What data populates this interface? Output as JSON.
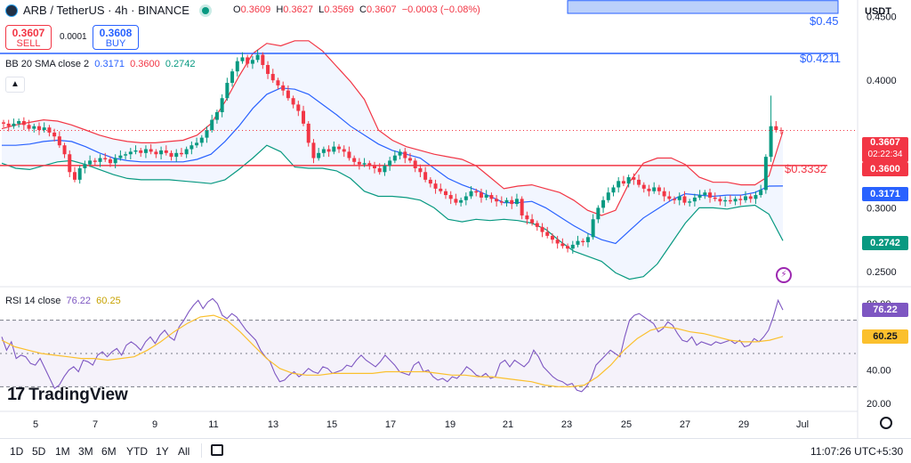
{
  "header": {
    "symbol": "ARB / TetherUS · 4h · BINANCE",
    "ohlc": {
      "o_label": "O",
      "o": "0.3609",
      "h_label": "H",
      "h": "0.3627",
      "l_label": "L",
      "l": "0.3569",
      "c_label": "C",
      "c": "0.3607",
      "change": "−0.0003 (−0.08%)"
    },
    "sell_price": "0.3607",
    "sell_label": "SELL",
    "spread": "0.0001",
    "buy_price": "0.3608",
    "buy_label": "BUY",
    "currency": "USDT"
  },
  "indicators": {
    "bb_label": "BB 20 SMA close 2",
    "bb_basis": "0.3171",
    "bb_upper": "0.3600",
    "bb_lower": "0.2742",
    "rsi_label": "RSI 14 close",
    "rsi_value": "76.22",
    "rsi_ma": "60.25"
  },
  "price_axis": {
    "ticks": [
      "0.4500",
      "0.4000",
      "0.3000",
      "0.2500"
    ]
  },
  "rsi_axis": {
    "ticks": [
      "80.00",
      "40.00",
      "20.00"
    ]
  },
  "time_axis": {
    "ticks": [
      "5",
      "7",
      "9",
      "11",
      "13",
      "15",
      "17",
      "19",
      "21",
      "23",
      "25",
      "27",
      "29",
      "Jul"
    ]
  },
  "tags": {
    "last_price": "0.3607",
    "countdown": "02:22:34",
    "upper": "0.3600",
    "basis": "0.3171",
    "lower": "0.2742",
    "rsi": "76.22",
    "rsi_ma": "60.25"
  },
  "annotations": {
    "level_045": "$0.45",
    "level_04211": "$0.4211",
    "level_03332": "$0.3332"
  },
  "branding": {
    "name": "TradingView"
  },
  "bottom_bar": {
    "timeframes": [
      "1D",
      "5D",
      "1M",
      "3M",
      "6M",
      "YTD",
      "1Y",
      "All"
    ],
    "clock": "11:07:26 UTC+5:30"
  },
  "colors": {
    "up": "#089981",
    "down": "#f23645",
    "basis": "#2962ff",
    "upper_band": "#f23645",
    "lower_band": "#089981",
    "rsi": "#7e57c2",
    "rsi_ma": "#fbc02d"
  },
  "chart_data": {
    "type": "candlestick",
    "title": "ARB / TetherUS · 4h · BINANCE",
    "x_ticks": [
      "5",
      "7",
      "9",
      "11",
      "13",
      "15",
      "17",
      "19",
      "21",
      "23",
      "25",
      "27",
      "29",
      "Jul"
    ],
    "price_range": [
      0.2381,
      0.463
    ],
    "horizontal_levels": [
      0.45,
      0.4211,
      0.3332
    ],
    "resistance_zone": [
      0.4525,
      0.4625
    ],
    "candle_closes": [
      0.366,
      0.364,
      0.366,
      0.368,
      0.365,
      0.362,
      0.364,
      0.361,
      0.363,
      0.359,
      0.356,
      0.349,
      0.342,
      0.328,
      0.322,
      0.331,
      0.334,
      0.337,
      0.336,
      0.339,
      0.338,
      0.335,
      0.339,
      0.341,
      0.342,
      0.344,
      0.345,
      0.343,
      0.346,
      0.344,
      0.342,
      0.345,
      0.343,
      0.34,
      0.343,
      0.342,
      0.346,
      0.349,
      0.351,
      0.355,
      0.361,
      0.369,
      0.375,
      0.386,
      0.398,
      0.407,
      0.415,
      0.418,
      0.413,
      0.416,
      0.42,
      0.412,
      0.405,
      0.4,
      0.396,
      0.392,
      0.386,
      0.381,
      0.376,
      0.366,
      0.351,
      0.339,
      0.343,
      0.346,
      0.344,
      0.348,
      0.346,
      0.344,
      0.339,
      0.336,
      0.334,
      0.335,
      0.333,
      0.331,
      0.328,
      0.333,
      0.337,
      0.341,
      0.344,
      0.339,
      0.337,
      0.331,
      0.328,
      0.322,
      0.319,
      0.315,
      0.313,
      0.31,
      0.307,
      0.304,
      0.306,
      0.309,
      0.313,
      0.312,
      0.308,
      0.31,
      0.307,
      0.305,
      0.304,
      0.306,
      0.303,
      0.307,
      0.294,
      0.291,
      0.288,
      0.285,
      0.281,
      0.278,
      0.275,
      0.272,
      0.27,
      0.268,
      0.271,
      0.274,
      0.273,
      0.277,
      0.291,
      0.3,
      0.306,
      0.312,
      0.316,
      0.321,
      0.319,
      0.324,
      0.322,
      0.318,
      0.315,
      0.313,
      0.316,
      0.313,
      0.309,
      0.307,
      0.306,
      0.309,
      0.304,
      0.305,
      0.308,
      0.31,
      0.312,
      0.308,
      0.307,
      0.305,
      0.306,
      0.305,
      0.307,
      0.306,
      0.309,
      0.307,
      0.31,
      0.314,
      0.34,
      0.364,
      0.361,
      0.3607
    ],
    "series": [
      {
        "name": "Basis",
        "values": [
          0.349,
          0.349,
          0.35,
          0.352,
          0.353,
          0.352,
          0.348,
          0.343,
          0.339,
          0.337,
          0.336,
          0.336,
          0.336,
          0.336,
          0.338,
          0.342,
          0.352,
          0.364,
          0.378,
          0.389,
          0.394,
          0.393,
          0.389,
          0.381,
          0.373,
          0.364,
          0.357,
          0.35,
          0.345,
          0.342,
          0.339,
          0.331,
          0.323,
          0.318,
          0.314,
          0.309,
          0.304,
          0.304,
          0.305,
          0.3,
          0.293,
          0.286,
          0.28,
          0.275,
          0.272,
          0.282,
          0.292,
          0.299,
          0.306,
          0.311,
          0.31,
          0.309,
          0.31,
          0.31,
          0.312,
          0.317,
          0.3171
        ]
      },
      {
        "name": "Upper",
        "values": [
          0.362,
          0.365,
          0.367,
          0.369,
          0.368,
          0.365,
          0.361,
          0.357,
          0.354,
          0.352,
          0.351,
          0.351,
          0.352,
          0.353,
          0.357,
          0.366,
          0.383,
          0.403,
          0.421,
          0.429,
          0.427,
          0.431,
          0.431,
          0.423,
          0.411,
          0.399,
          0.385,
          0.361,
          0.353,
          0.348,
          0.345,
          0.342,
          0.34,
          0.338,
          0.333,
          0.324,
          0.315,
          0.317,
          0.318,
          0.315,
          0.312,
          0.306,
          0.298,
          0.294,
          0.298,
          0.32,
          0.335,
          0.339,
          0.339,
          0.334,
          0.324,
          0.32,
          0.32,
          0.318,
          0.318,
          0.325,
          0.36
        ]
      },
      {
        "name": "Lower",
        "values": [
          0.335,
          0.331,
          0.33,
          0.333,
          0.336,
          0.337,
          0.334,
          0.33,
          0.326,
          0.323,
          0.322,
          0.322,
          0.322,
          0.321,
          0.32,
          0.319,
          0.322,
          0.33,
          0.339,
          0.349,
          0.344,
          0.332,
          0.331,
          0.331,
          0.329,
          0.323,
          0.313,
          0.309,
          0.309,
          0.308,
          0.306,
          0.3,
          0.291,
          0.289,
          0.291,
          0.29,
          0.291,
          0.29,
          0.288,
          0.283,
          0.274,
          0.266,
          0.262,
          0.258,
          0.249,
          0.244,
          0.246,
          0.256,
          0.272,
          0.288,
          0.3,
          0.3,
          0.299,
          0.301,
          0.302,
          0.295,
          0.2742
        ]
      }
    ],
    "rsi": {
      "range": [
        20,
        80
      ],
      "levels": [
        70,
        50,
        30
      ],
      "values": [
        60,
        52,
        57,
        47,
        49,
        48,
        44,
        43,
        47,
        41,
        35,
        29,
        31,
        36,
        40,
        42,
        39,
        46,
        45,
        43,
        49,
        51,
        48,
        51,
        53,
        49,
        55,
        57,
        55,
        52,
        57,
        60,
        56,
        61,
        64,
        60,
        58,
        66,
        70,
        75,
        79,
        82,
        77,
        81,
        83,
        80,
        73,
        71,
        74,
        72,
        68,
        64,
        61,
        58,
        52,
        48,
        45,
        38,
        33,
        34,
        37,
        39,
        36,
        38,
        41,
        39,
        38,
        42,
        41,
        38,
        39,
        40,
        43,
        42,
        46,
        49,
        46,
        44,
        42,
        45,
        49,
        46,
        43,
        39,
        38,
        37,
        43,
        45,
        39,
        40,
        36,
        34,
        35,
        33,
        36,
        35,
        38,
        42,
        40,
        37,
        36,
        38,
        35,
        36,
        44,
        46,
        42,
        46,
        44,
        42,
        45,
        52,
        48,
        42,
        39,
        36,
        34,
        33,
        31,
        32,
        28,
        27,
        30,
        35,
        43,
        46,
        49,
        52,
        50,
        48,
        60,
        70,
        73,
        74,
        72,
        70,
        68,
        63,
        65,
        69,
        67,
        62,
        58,
        57,
        60,
        55,
        57,
        56,
        55,
        57,
        56,
        57,
        58,
        56,
        58,
        54,
        55,
        59,
        57,
        60,
        64,
        72,
        82,
        76.22
      ],
      "ma_values": [
        58,
        54,
        52,
        50,
        49,
        48,
        47,
        47,
        46,
        47,
        48,
        52,
        57,
        63,
        68,
        72,
        73,
        70,
        63,
        55,
        47,
        41,
        38,
        37,
        37,
        38,
        38,
        38,
        38,
        39,
        39,
        39,
        39,
        38,
        37,
        37,
        36,
        36,
        35,
        34,
        33,
        31,
        30,
        30,
        31,
        36,
        43,
        52,
        59,
        64,
        66,
        65,
        63,
        62,
        60,
        58,
        57,
        57,
        58,
        60.25
      ]
    }
  }
}
